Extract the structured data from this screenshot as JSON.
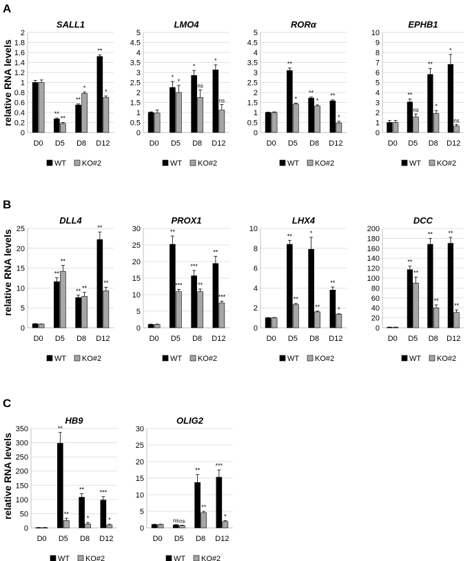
{
  "figure": {
    "panel_letters": [
      "A",
      "B",
      "C"
    ],
    "y_axis_label": "relative RNA levels",
    "legend": [
      "WT",
      "KO#2"
    ],
    "categories": [
      "D0",
      "D5",
      "D8",
      "D12"
    ],
    "colors": {
      "WT": "#000000",
      "KO#2": "#a6a6a6",
      "gridline": "#d9d9d9",
      "axis": "#bfbfbf"
    }
  },
  "chart_data": [
    {
      "panel": "A",
      "type": "bar",
      "title": "SALL1",
      "categories": [
        "D0",
        "D5",
        "D8",
        "D12"
      ],
      "ylim": [
        0,
        2
      ],
      "ytick_step": 0.2,
      "yticks": [
        "0",
        "0.2",
        "0.4",
        "0.6",
        "0.8",
        "1",
        "1.2",
        "1.4",
        "1.6",
        "1.8",
        "2"
      ],
      "series": [
        {
          "name": "WT",
          "values": [
            1.0,
            0.27,
            0.55,
            1.52
          ],
          "errors": [
            0.04,
            0.02,
            0.02,
            0.03
          ],
          "annotations": [
            "",
            "**",
            "**",
            "**"
          ]
        },
        {
          "name": "KO#2",
          "values": [
            1.0,
            0.18,
            0.78,
            0.7
          ],
          "errors": [
            0.05,
            0.02,
            0.03,
            0.03
          ],
          "annotations": [
            "",
            "**",
            "*",
            "*"
          ]
        }
      ]
    },
    {
      "panel": "A",
      "type": "bar",
      "title": "LMO4",
      "categories": [
        "D0",
        "D5",
        "D8",
        "D12"
      ],
      "ylim": [
        0,
        5
      ],
      "ytick_step": 0.5,
      "yticks": [
        "0",
        "0.5",
        "1",
        "1.5",
        "2",
        "2.5",
        "3",
        "3.5",
        "4",
        "4.5",
        "5"
      ],
      "series": [
        {
          "name": "WT",
          "values": [
            1.0,
            2.25,
            2.85,
            3.13
          ],
          "errors": [
            0.03,
            0.3,
            0.25,
            0.25
          ],
          "annotations": [
            "",
            "*",
            "*",
            "*"
          ]
        },
        {
          "name": "KO#2",
          "values": [
            0.97,
            2.0,
            1.75,
            1.12
          ],
          "errors": [
            0.15,
            0.35,
            0.38,
            0.28
          ],
          "annotations": [
            "",
            "*",
            "ns",
            "ns"
          ]
        }
      ]
    },
    {
      "panel": "A",
      "type": "bar",
      "title": "RORα",
      "categories": [
        "D0",
        "D5",
        "D8",
        "D12"
      ],
      "ylim": [
        0,
        5
      ],
      "ytick_step": 0.5,
      "yticks": [
        "0",
        "0.5",
        "1",
        "1.5",
        "2",
        "2.5",
        "3",
        "3.5",
        "4",
        "4.5",
        "5"
      ],
      "series": [
        {
          "name": "WT",
          "values": [
            1.0,
            3.1,
            1.72,
            1.58
          ],
          "errors": [
            0.02,
            0.12,
            0.05,
            0.05
          ],
          "annotations": [
            "",
            "**",
            "**",
            "**"
          ]
        },
        {
          "name": "KO#2",
          "values": [
            1.0,
            1.42,
            1.32,
            0.48
          ],
          "errors": [
            0.03,
            0.04,
            0.06,
            0.08
          ],
          "annotations": [
            "",
            "*",
            "*",
            "*"
          ]
        }
      ]
    },
    {
      "panel": "A",
      "type": "bar",
      "title": "EPHB1",
      "categories": [
        "D0",
        "D5",
        "D8",
        "D12"
      ],
      "ylim": [
        0,
        10
      ],
      "ytick_step": 1,
      "yticks": [
        "0",
        "1",
        "2",
        "3",
        "4",
        "5",
        "6",
        "7",
        "8",
        "9",
        "10"
      ],
      "series": [
        {
          "name": "WT",
          "values": [
            1.0,
            3.05,
            5.8,
            6.8
          ],
          "errors": [
            0.2,
            0.3,
            0.6,
            1.0
          ],
          "annotations": [
            "",
            "**",
            "**",
            "*"
          ]
        },
        {
          "name": "KO#2",
          "values": [
            1.0,
            1.55,
            1.9,
            0.65
          ],
          "errors": [
            0.2,
            0.3,
            0.3,
            0.15
          ],
          "annotations": [
            "",
            "ns",
            "*",
            "ns"
          ]
        }
      ]
    },
    {
      "panel": "B",
      "type": "bar",
      "title": "DLL4",
      "categories": [
        "D0",
        "D5",
        "D8",
        "D12"
      ],
      "ylim": [
        0,
        25
      ],
      "ytick_step": 5,
      "yticks": [
        "0",
        "5",
        "10",
        "15",
        "20",
        "25"
      ],
      "series": [
        {
          "name": "WT",
          "values": [
            1.0,
            11.6,
            7.6,
            22.2
          ],
          "errors": [
            0.05,
            1.0,
            0.6,
            1.9
          ],
          "annotations": [
            "",
            "**",
            "**",
            "**"
          ]
        },
        {
          "name": "KO#2",
          "values": [
            0.9,
            14.2,
            7.9,
            9.3
          ],
          "errors": [
            0.05,
            1.5,
            1.0,
            0.9
          ],
          "annotations": [
            "",
            "**",
            "**",
            "**"
          ]
        }
      ]
    },
    {
      "panel": "B",
      "type": "bar",
      "title": "PROX1",
      "categories": [
        "D0",
        "D5",
        "D8",
        "D12"
      ],
      "ylim": [
        0,
        30
      ],
      "ytick_step": 5,
      "yticks": [
        "0",
        "5",
        "10",
        "15",
        "20",
        "25",
        "30"
      ],
      "series": [
        {
          "name": "WT",
          "values": [
            1.0,
            25.2,
            15.7,
            19.4
          ],
          "errors": [
            0.1,
            2.5,
            1.6,
            2.2
          ],
          "annotations": [
            "",
            "**",
            "***",
            "**"
          ]
        },
        {
          "name": "KO#2",
          "values": [
            1.0,
            10.9,
            10.9,
            7.5
          ],
          "errors": [
            0.1,
            0.7,
            0.8,
            0.5
          ],
          "annotations": [
            "",
            "***",
            "**",
            "***"
          ]
        }
      ]
    },
    {
      "panel": "B",
      "type": "bar",
      "title": "LHX4",
      "categories": [
        "D0",
        "D5",
        "D8",
        "D12"
      ],
      "ylim": [
        0,
        10
      ],
      "ytick_step": 2,
      "yticks": [
        "0",
        "2",
        "4",
        "6",
        "8",
        "10"
      ],
      "series": [
        {
          "name": "WT",
          "values": [
            1.0,
            8.4,
            7.9,
            3.8
          ],
          "errors": [
            0.03,
            0.4,
            1.2,
            0.3
          ],
          "annotations": [
            "",
            "**",
            "*",
            "**"
          ]
        },
        {
          "name": "KO#2",
          "values": [
            1.0,
            2.35,
            1.6,
            1.35
          ],
          "errors": [
            0.03,
            0.1,
            0.08,
            0.06
          ],
          "annotations": [
            "",
            "**",
            "**",
            "*"
          ]
        }
      ]
    },
    {
      "panel": "B",
      "type": "bar",
      "title": "DCC",
      "categories": [
        "D0",
        "D5",
        "D8",
        "D12"
      ],
      "ylim": [
        0,
        200
      ],
      "ytick_step": 20,
      "yticks": [
        "0",
        "20",
        "40",
        "60",
        "80",
        "100",
        "120",
        "140",
        "160",
        "180",
        "200"
      ],
      "series": [
        {
          "name": "WT",
          "values": [
            1.0,
            117,
            168,
            170
          ],
          "errors": [
            0.5,
            7,
            12,
            12
          ],
          "annotations": [
            "",
            "**",
            "**",
            "**"
          ]
        },
        {
          "name": "KO#2",
          "values": [
            1.0,
            90,
            40,
            31
          ],
          "errors": [
            0.5,
            12,
            6,
            5
          ],
          "annotations": [
            "",
            "**",
            "**",
            "**"
          ]
        }
      ]
    },
    {
      "panel": "C",
      "type": "bar",
      "title": "HB9",
      "categories": [
        "D0",
        "D5",
        "D8",
        "D12"
      ],
      "ylim": [
        0,
        350
      ],
      "ytick_step": 50,
      "yticks": [
        "0",
        "50",
        "100",
        "150",
        "200",
        "250",
        "300",
        "350"
      ],
      "series": [
        {
          "name": "WT",
          "values": [
            1.0,
            298,
            108,
            98
          ],
          "errors": [
            0.5,
            38,
            12,
            12
          ],
          "annotations": [
            "",
            "**",
            "**",
            "***"
          ]
        },
        {
          "name": "KO#2",
          "values": [
            1.0,
            26,
            14,
            10
          ],
          "errors": [
            0.5,
            8,
            5,
            3
          ],
          "annotations": [
            "",
            "**",
            "*",
            "*"
          ]
        }
      ]
    },
    {
      "panel": "C",
      "type": "bar",
      "title": "OLIG2",
      "categories": [
        "D0",
        "D5",
        "D8",
        "D12"
      ],
      "ylim": [
        0,
        30
      ],
      "ytick_step": 5,
      "yticks": [
        "0",
        "5",
        "10",
        "15",
        "20",
        "25",
        "30"
      ],
      "series": [
        {
          "name": "WT",
          "values": [
            1.0,
            0.9,
            13.7,
            15.3
          ],
          "errors": [
            0.1,
            0.1,
            2.4,
            2.2
          ],
          "annotations": [
            "",
            "ns",
            "**",
            "***"
          ]
        },
        {
          "name": "KO#2",
          "values": [
            1.0,
            0.7,
            4.6,
            1.9
          ],
          "errors": [
            0.1,
            0.1,
            0.4,
            0.3
          ],
          "annotations": [
            "",
            "ns",
            "**",
            "*"
          ]
        }
      ]
    }
  ]
}
